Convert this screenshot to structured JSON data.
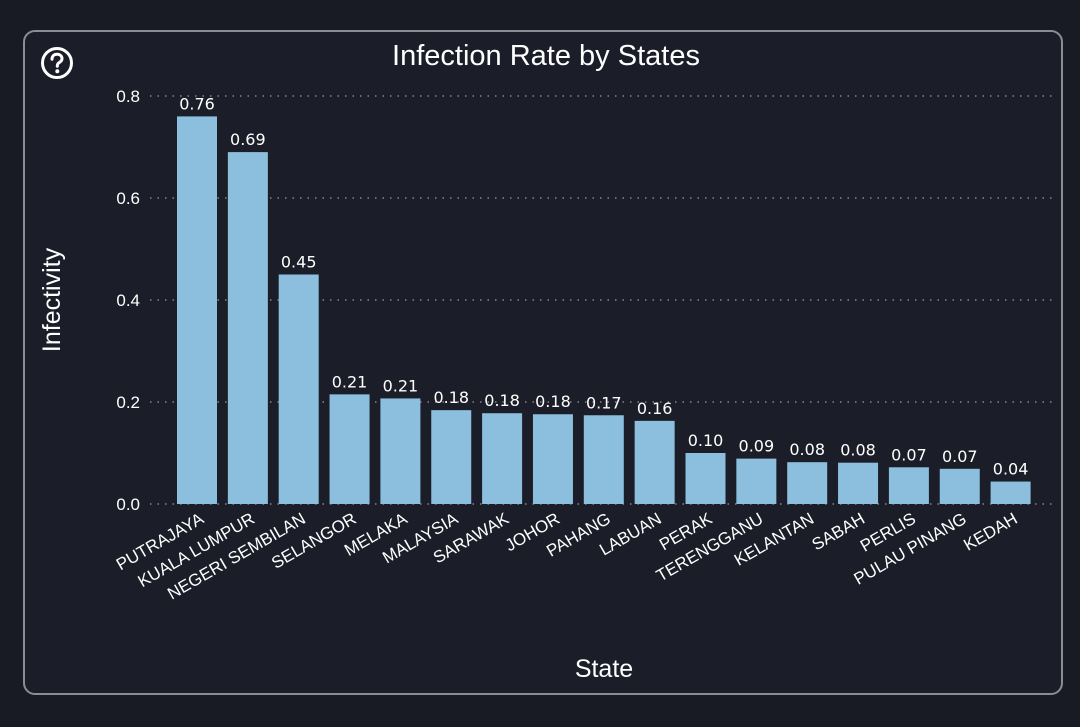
{
  "colors": {
    "background": "#181b23",
    "card": "#1b1e28",
    "bar": "#8bbfdd",
    "grid": "#9a9ca3",
    "text": "#ffffff"
  },
  "help": {
    "icon": "question-circle-icon"
  },
  "chart_data": {
    "type": "bar",
    "title": "Infection Rate by States",
    "xlabel": "State",
    "ylabel": "Infectivity",
    "ylim": [
      0,
      0.8
    ],
    "yticks": [
      "0.0",
      "0.2",
      "0.4",
      "0.6",
      "0.8"
    ],
    "grid": "horizontal dotted",
    "categories": [
      "PUTRAJAYA",
      "KUALA LUMPUR",
      "NEGERI SEMBILAN",
      "SELANGOR",
      "MELAKA",
      "MALAYSIA",
      "SARAWAK",
      "JOHOR",
      "PAHANG",
      "LABUAN",
      "PERAK",
      "TERENGGANU",
      "KELANTAN",
      "SABAH",
      "PERLIS",
      "PULAU PINANG",
      "KEDAH"
    ],
    "values": [
      0.76,
      0.69,
      0.45,
      0.215,
      0.207,
      0.184,
      0.178,
      0.176,
      0.174,
      0.163,
      0.1,
      0.089,
      0.082,
      0.081,
      0.072,
      0.069,
      0.044
    ],
    "data_labels": [
      "0.76",
      "0.69",
      "0.45",
      "0.21",
      "0.21",
      "0.18",
      "0.18",
      "0.18",
      "0.17",
      "0.16",
      "0.10",
      "0.09",
      "0.08",
      "0.08",
      "0.07",
      "0.07",
      "0.04"
    ]
  }
}
